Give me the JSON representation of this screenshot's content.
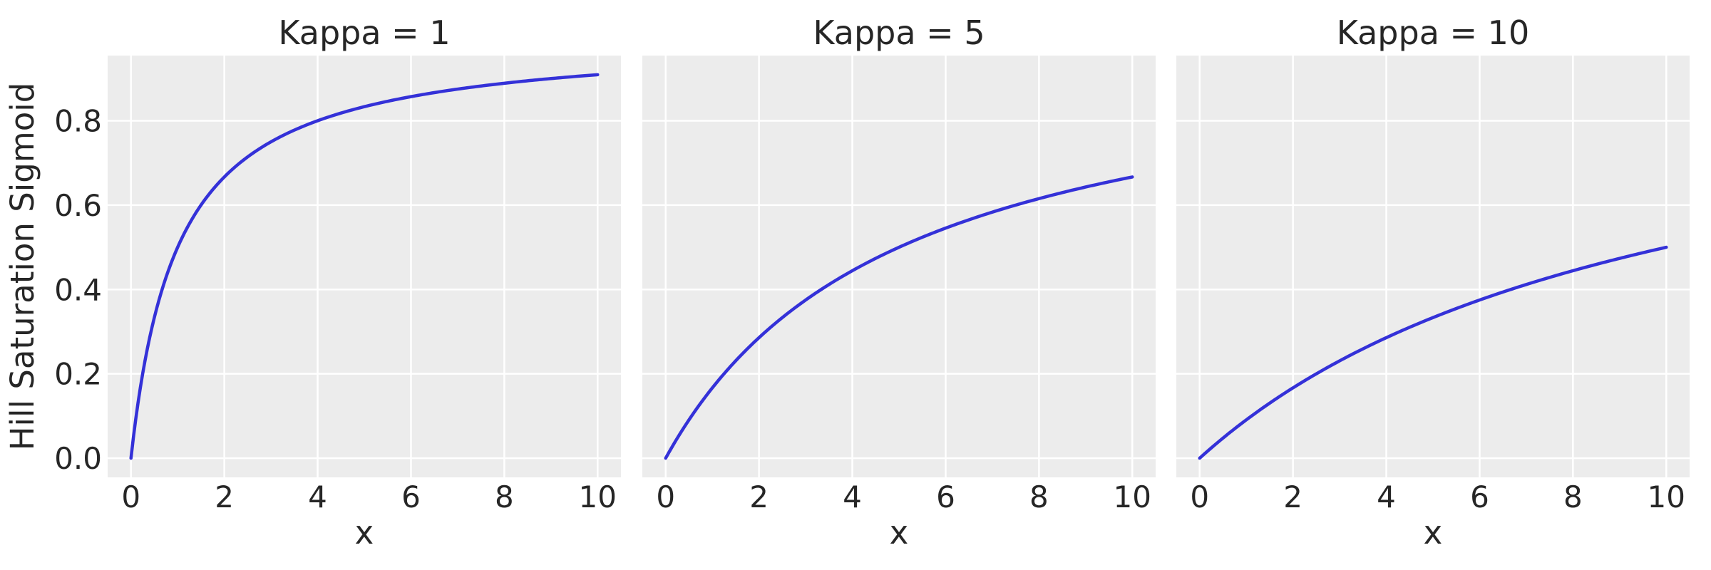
{
  "figure": {
    "background": "#ffffff",
    "text_color": "#262626"
  },
  "chart_data": {
    "type": "line",
    "formula": "y = x / (x + kappa)",
    "formula_js": "x / (x + kappa)",
    "panels": [
      {
        "title": "Kappa = 1",
        "kappa": 1,
        "value_at_x10": 0.909
      },
      {
        "title": "Kappa = 5",
        "kappa": 5,
        "value_at_x10": 0.667
      },
      {
        "title": "Kappa = 10",
        "kappa": 10,
        "value_at_x10": 0.5
      }
    ],
    "x": {
      "label": "x",
      "min": 0,
      "max": 10,
      "ticks": [
        0,
        2,
        4,
        6,
        8,
        10
      ]
    },
    "y": {
      "label": "Hill Saturation Sigmoid",
      "ticks": [
        0.0,
        0.2,
        0.4,
        0.6,
        0.8
      ]
    },
    "xlim": [
      -0.5,
      10.5
    ],
    "ylim": [
      -0.0455,
      0.9545
    ],
    "y_tick_decimals": 1,
    "grid": true,
    "legend": "none",
    "styles": {
      "line_color": "#3431d8",
      "axes_background": "#ececec",
      "grid_color": "#ffffff",
      "line_width": 4.5,
      "grid_width": 2.5
    }
  }
}
